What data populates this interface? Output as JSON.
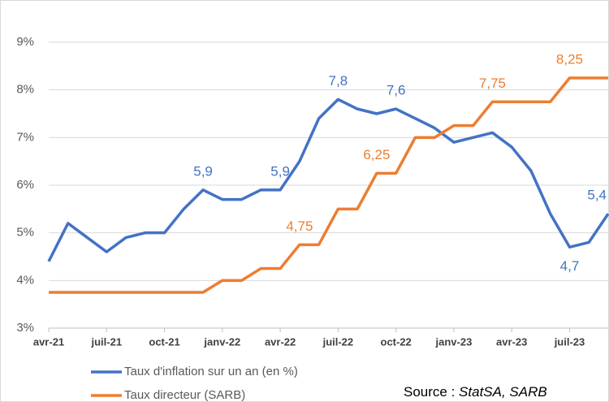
{
  "chart_data": {
    "type": "line",
    "categories": [
      "avr-21",
      null,
      null,
      "juil-21",
      null,
      null,
      "oct-21",
      null,
      null,
      "janv-22",
      null,
      null,
      "avr-22",
      null,
      null,
      "juil-22",
      null,
      null,
      "oct-22",
      null,
      null,
      "janv-23",
      null,
      null,
      "avr-23",
      null,
      null,
      "juil-23",
      null,
      null
    ],
    "series": [
      {
        "name": "Taux d'inflation sur un an (en %)",
        "color": "#4472c4",
        "values": [
          4.4,
          5.2,
          4.9,
          4.6,
          4.9,
          5.0,
          5.0,
          5.5,
          5.9,
          5.7,
          5.7,
          5.9,
          5.9,
          6.5,
          7.4,
          7.8,
          7.6,
          7.5,
          7.6,
          7.4,
          7.2,
          6.9,
          7.0,
          7.1,
          6.8,
          6.3,
          5.4,
          4.7,
          4.8,
          5.4
        ],
        "value_labels": [
          null,
          null,
          null,
          null,
          null,
          null,
          null,
          null,
          "5,9",
          null,
          null,
          null,
          "5,9",
          null,
          null,
          "7,8",
          null,
          null,
          "7,6",
          null,
          null,
          null,
          null,
          null,
          null,
          null,
          null,
          "4,7",
          null,
          "5,4"
        ]
      },
      {
        "name": "Taux directeur (SARB)",
        "color": "#ed7d31",
        "values": [
          3.75,
          3.75,
          3.75,
          3.75,
          3.75,
          3.75,
          3.75,
          3.75,
          3.75,
          4.0,
          4.0,
          4.25,
          4.25,
          4.75,
          4.75,
          5.5,
          5.5,
          6.25,
          6.25,
          7.0,
          7.0,
          7.25,
          7.25,
          7.75,
          7.75,
          7.75,
          7.75,
          8.25,
          8.25,
          8.25
        ],
        "value_labels": [
          null,
          null,
          null,
          null,
          null,
          null,
          null,
          null,
          null,
          null,
          null,
          null,
          null,
          "4,75",
          null,
          null,
          null,
          "6,25",
          null,
          null,
          null,
          null,
          null,
          "7,75",
          null,
          null,
          null,
          "8,25",
          null,
          null
        ]
      }
    ],
    "ylim": [
      3,
      9
    ],
    "yticks": [
      {
        "value": 3,
        "label": "3%"
      },
      {
        "value": 4,
        "label": "4%"
      },
      {
        "value": 5,
        "label": "5%"
      },
      {
        "value": 6,
        "label": "6%"
      },
      {
        "value": 7,
        "label": "7%"
      },
      {
        "value": 8,
        "label": "8%"
      },
      {
        "value": 9,
        "label": "9%"
      }
    ],
    "grid": true,
    "legend": "bottom-left",
    "source_label": "Source :",
    "source": "StatSA, SARB"
  }
}
